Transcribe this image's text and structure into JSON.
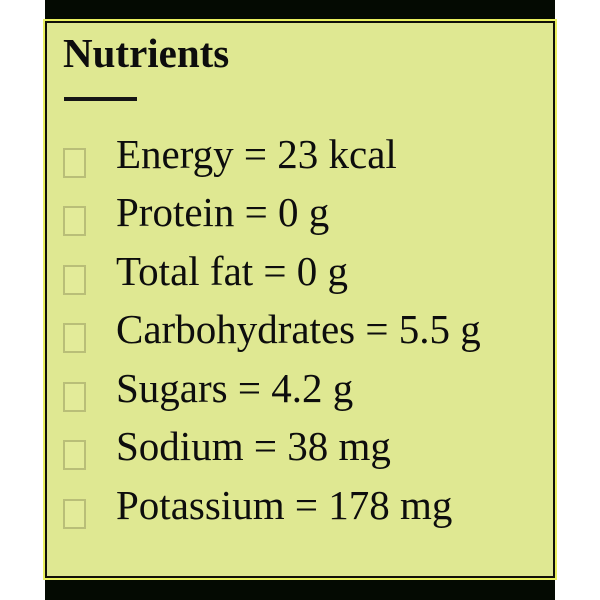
{
  "card": {
    "title": "Nutrients",
    "bullet_icon": "empty-checkbox",
    "items": [
      {
        "label": "Energy",
        "value": "23",
        "unit": "kcal",
        "text": "Energy = 23 kcal"
      },
      {
        "label": "Protein",
        "value": "0",
        "unit": "g",
        "text": "Protein = 0 g"
      },
      {
        "label": "Total fat",
        "value": "0",
        "unit": "g",
        "text": "Total fat = 0 g"
      },
      {
        "label": "Carbohydrates",
        "value": "5.5",
        "unit": "g",
        "text": "Carbohydrates = 5.5 g"
      },
      {
        "label": "Sugars",
        "value": "4.2",
        "unit": "g",
        "text": "Sugars = 4.2 g"
      },
      {
        "label": "Sodium",
        "value": "38",
        "unit": "mg",
        "text": "Sodium = 38 mg"
      },
      {
        "label": "Potassium",
        "value": "178",
        "unit": "mg",
        "text": "Potassium = 178 mg"
      }
    ],
    "colors": {
      "card_background": "#dfe892",
      "card_border": "#101008",
      "outer_outline": "#e9f05f",
      "top_bottom_bar": "#040a02",
      "text": "#0d0d0d",
      "bullet_border": "#b9be78",
      "page_background": "#ffffff"
    }
  }
}
